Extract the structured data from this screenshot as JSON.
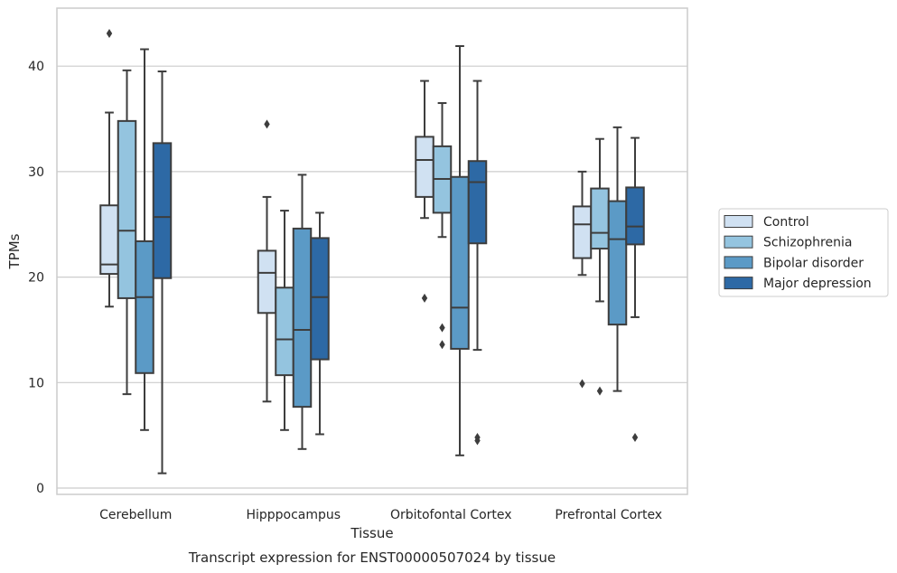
{
  "caption": "Transcript expression for ENST00000507024 by tissue",
  "chart_data": {
    "type": "boxplot",
    "xlabel": "Tissue",
    "ylabel": "TPMs",
    "ylim": [
      -0.6,
      45.5
    ],
    "yticks": [
      0,
      10,
      20,
      30,
      40
    ],
    "grid": "horizontal",
    "legend_position": "right",
    "categories": [
      "Cerebellum",
      "Hipppocampus",
      "Orbitofontal Cortex",
      "Prefrontal Cortex"
    ],
    "series": [
      {
        "name": "Control",
        "color": "#d0e1f2",
        "boxes": [
          {
            "whisker_low": 17.2,
            "q1": 20.3,
            "median": 21.2,
            "q3": 26.8,
            "whisker_high": 35.6,
            "outliers": [
              43.1
            ]
          },
          {
            "whisker_low": 8.2,
            "q1": 16.6,
            "median": 20.4,
            "q3": 22.5,
            "whisker_high": 27.6,
            "outliers": [
              34.5
            ]
          },
          {
            "whisker_low": 25.6,
            "q1": 27.6,
            "median": 31.1,
            "q3": 33.3,
            "whisker_high": 38.6,
            "outliers": [
              18.0
            ]
          },
          {
            "whisker_low": 20.2,
            "q1": 21.8,
            "median": 25.0,
            "q3": 26.7,
            "whisker_high": 30.0,
            "outliers": [
              9.9
            ]
          }
        ]
      },
      {
        "name": "Schizophrenia",
        "color": "#94c4df",
        "boxes": [
          {
            "whisker_low": 8.9,
            "q1": 18.0,
            "median": 24.4,
            "q3": 34.8,
            "whisker_high": 39.6,
            "outliers": []
          },
          {
            "whisker_low": 5.5,
            "q1": 10.7,
            "median": 14.1,
            "q3": 19.0,
            "whisker_high": 26.3,
            "outliers": []
          },
          {
            "whisker_low": 23.8,
            "q1": 26.1,
            "median": 29.3,
            "q3": 32.4,
            "whisker_high": 36.5,
            "outliers": [
              15.2,
              13.6
            ]
          },
          {
            "whisker_low": 17.7,
            "q1": 22.7,
            "median": 24.2,
            "q3": 28.4,
            "whisker_high": 33.1,
            "outliers": [
              9.2
            ]
          }
        ]
      },
      {
        "name": "Bipolar disorder",
        "color": "#5b9ac6",
        "boxes": [
          {
            "whisker_low": 5.5,
            "q1": 10.9,
            "median": 18.1,
            "q3": 23.4,
            "whisker_high": 41.6,
            "outliers": []
          },
          {
            "whisker_low": 3.7,
            "q1": 7.7,
            "median": 15.0,
            "q3": 24.6,
            "whisker_high": 29.7,
            "outliers": []
          },
          {
            "whisker_low": 3.1,
            "q1": 13.2,
            "median": 17.1,
            "q3": 29.5,
            "whisker_high": 41.9,
            "outliers": []
          },
          {
            "whisker_low": 9.2,
            "q1": 15.5,
            "median": 23.6,
            "q3": 27.2,
            "whisker_high": 34.2,
            "outliers": []
          }
        ]
      },
      {
        "name": "Major depression",
        "color": "#2d69a5",
        "boxes": [
          {
            "whisker_low": 1.4,
            "q1": 19.9,
            "median": 25.7,
            "q3": 32.7,
            "whisker_high": 39.5,
            "outliers": []
          },
          {
            "whisker_low": 5.1,
            "q1": 12.2,
            "median": 18.1,
            "q3": 23.7,
            "whisker_high": 26.1,
            "outliers": []
          },
          {
            "whisker_low": 13.1,
            "q1": 23.2,
            "median": 29.0,
            "q3": 31.0,
            "whisker_high": 38.6,
            "outliers": [
              4.8,
              4.5
            ]
          },
          {
            "whisker_low": 16.2,
            "q1": 23.1,
            "median": 24.8,
            "q3": 28.5,
            "whisker_high": 33.2,
            "outliers": [
              4.8
            ]
          }
        ]
      }
    ]
  }
}
